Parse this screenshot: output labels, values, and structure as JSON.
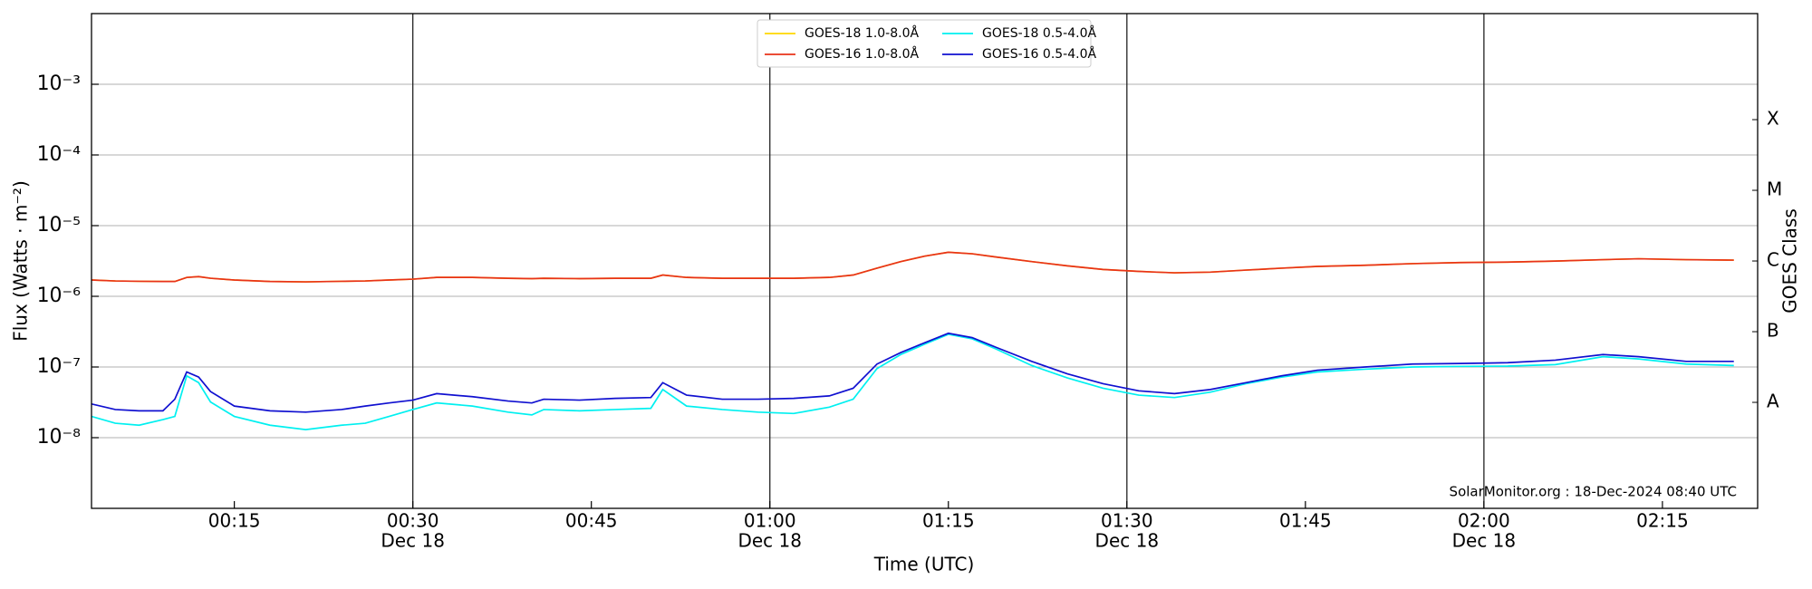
{
  "chart_data": {
    "type": "line",
    "xlabel": "Time (UTC)",
    "ylabel": "Flux (Watts · m⁻²)",
    "y2label": "GOES Class",
    "footer": "SolarMonitor.org : 18-Dec-2024 08:40 UTC",
    "log_y": true,
    "grid_y": true,
    "legend": "upper center",
    "x": [
      "00:03",
      "00:05",
      "00:07",
      "00:09",
      "00:10",
      "00:11",
      "00:12",
      "00:13",
      "00:15",
      "00:18",
      "00:21",
      "00:24",
      "00:26",
      "00:28",
      "00:30",
      "00:32",
      "00:35",
      "00:38",
      "00:40",
      "00:41",
      "00:44",
      "00:47",
      "00:50",
      "00:51",
      "00:53",
      "00:56",
      "00:59",
      "01:02",
      "01:05",
      "01:07",
      "01:09",
      "01:11",
      "01:13",
      "01:15",
      "01:17",
      "01:19",
      "01:22",
      "01:25",
      "01:28",
      "01:31",
      "01:34",
      "01:37",
      "01:40",
      "01:43",
      "01:46",
      "01:50",
      "01:54",
      "01:58",
      "02:02",
      "02:06",
      "02:10",
      "02:13",
      "02:17",
      "02:21"
    ],
    "xlim": [
      "00:03",
      "02:23"
    ],
    "xticks": [
      "00:15",
      "00:30",
      "00:45",
      "01:00",
      "01:15",
      "01:30",
      "01:45",
      "02:00",
      "02:15"
    ],
    "xtick_dates": [
      null,
      "Dec 18",
      null,
      "Dec 18",
      null,
      "Dec 18",
      null,
      "Dec 18",
      null
    ],
    "ylim": [
      1e-09,
      0.01
    ],
    "yticks": [
      {
        "value": 1e-08,
        "label": "10⁻⁸"
      },
      {
        "value": 1e-07,
        "label": "10⁻⁷"
      },
      {
        "value": 1e-06,
        "label": "10⁻⁶"
      },
      {
        "value": 1e-05,
        "label": "10⁻⁵"
      },
      {
        "value": 0.0001,
        "label": "10⁻⁴"
      },
      {
        "value": 0.001,
        "label": "10⁻³"
      }
    ],
    "y2lim": [
      1e-09,
      0.01
    ],
    "y2ticks": [
      {
        "value": 3.16e-08,
        "label": "A"
      },
      {
        "value": 3.16e-07,
        "label": "B"
      },
      {
        "value": 3.16e-06,
        "label": "C"
      },
      {
        "value": 3.16e-05,
        "label": "M"
      },
      {
        "value": 0.000316,
        "label": "X"
      }
    ],
    "series": [
      {
        "name": "GOES-18 1.0-8.0Å",
        "color": "#ffd700",
        "values": [
          1.7e-06,
          1.65e-06,
          1.63e-06,
          1.62e-06,
          1.62e-06,
          1.85e-06,
          1.9e-06,
          1.8e-06,
          1.7e-06,
          1.62e-06,
          1.6e-06,
          1.63e-06,
          1.65e-06,
          1.7e-06,
          1.75e-06,
          1.85e-06,
          1.85e-06,
          1.8e-06,
          1.78e-06,
          1.8e-06,
          1.78e-06,
          1.8e-06,
          1.8e-06,
          2e-06,
          1.85e-06,
          1.8e-06,
          1.8e-06,
          1.8e-06,
          1.85e-06,
          2e-06,
          2.5e-06,
          3.1e-06,
          3.7e-06,
          4.2e-06,
          4e-06,
          3.6e-06,
          3.1e-06,
          2.7e-06,
          2.4e-06,
          2.25e-06,
          2.15e-06,
          2.2e-06,
          2.35e-06,
          2.5e-06,
          2.65e-06,
          2.75e-06,
          2.9e-06,
          3e-06,
          3.05e-06,
          3.15e-06,
          3.3e-06,
          3.4e-06,
          3.3e-06,
          3.25e-06
        ]
      },
      {
        "name": "GOES-16 1.0-8.0Å",
        "color": "#e8321a",
        "values": [
          1.7e-06,
          1.65e-06,
          1.63e-06,
          1.62e-06,
          1.62e-06,
          1.85e-06,
          1.9e-06,
          1.8e-06,
          1.7e-06,
          1.62e-06,
          1.6e-06,
          1.63e-06,
          1.65e-06,
          1.7e-06,
          1.75e-06,
          1.85e-06,
          1.85e-06,
          1.8e-06,
          1.78e-06,
          1.8e-06,
          1.78e-06,
          1.8e-06,
          1.8e-06,
          2e-06,
          1.85e-06,
          1.8e-06,
          1.8e-06,
          1.8e-06,
          1.85e-06,
          2e-06,
          2.5e-06,
          3.1e-06,
          3.7e-06,
          4.2e-06,
          4e-06,
          3.6e-06,
          3.1e-06,
          2.7e-06,
          2.4e-06,
          2.25e-06,
          2.15e-06,
          2.2e-06,
          2.35e-06,
          2.5e-06,
          2.65e-06,
          2.75e-06,
          2.9e-06,
          3e-06,
          3.05e-06,
          3.15e-06,
          3.3e-06,
          3.4e-06,
          3.3e-06,
          3.25e-06
        ]
      },
      {
        "name": "GOES-18 0.5-4.0Å",
        "color": "#00f0f0",
        "values": [
          2e-08,
          1.6e-08,
          1.5e-08,
          1.8e-08,
          2e-08,
          7.5e-08,
          6e-08,
          3.2e-08,
          2e-08,
          1.5e-08,
          1.3e-08,
          1.5e-08,
          1.6e-08,
          2e-08,
          2.5e-08,
          3.1e-08,
          2.8e-08,
          2.3e-08,
          2.1e-08,
          2.5e-08,
          2.4e-08,
          2.5e-08,
          2.6e-08,
          4.8e-08,
          2.8e-08,
          2.5e-08,
          2.3e-08,
          2.2e-08,
          2.7e-08,
          3.5e-08,
          9.5e-08,
          1.5e-07,
          2.1e-07,
          2.9e-07,
          2.5e-07,
          1.8e-07,
          1.05e-07,
          7e-08,
          5e-08,
          4e-08,
          3.7e-08,
          4.4e-08,
          5.8e-08,
          7.2e-08,
          8.5e-08,
          9.3e-08,
          1e-07,
          1.02e-07,
          1.03e-07,
          1.08e-07,
          1.4e-07,
          1.3e-07,
          1.1e-07,
          1.05e-07
        ]
      },
      {
        "name": "GOES-16 0.5-4.0Å",
        "color": "#1010d0",
        "values": [
          3e-08,
          2.5e-08,
          2.4e-08,
          2.4e-08,
          3.5e-08,
          8.5e-08,
          7.2e-08,
          4.5e-08,
          2.8e-08,
          2.4e-08,
          2.3e-08,
          2.5e-08,
          2.8e-08,
          3.1e-08,
          3.4e-08,
          4.2e-08,
          3.8e-08,
          3.3e-08,
          3.1e-08,
          3.5e-08,
          3.4e-08,
          3.6e-08,
          3.7e-08,
          6e-08,
          4e-08,
          3.5e-08,
          3.5e-08,
          3.6e-08,
          3.9e-08,
          5e-08,
          1.1e-07,
          1.6e-07,
          2.2e-07,
          3e-07,
          2.6e-07,
          1.9e-07,
          1.2e-07,
          8e-08,
          5.8e-08,
          4.6e-08,
          4.2e-08,
          4.8e-08,
          6e-08,
          7.5e-08,
          9e-08,
          1e-07,
          1.1e-07,
          1.12e-07,
          1.15e-07,
          1.25e-07,
          1.5e-07,
          1.4e-07,
          1.2e-07,
          1.2e-07
        ]
      }
    ]
  }
}
